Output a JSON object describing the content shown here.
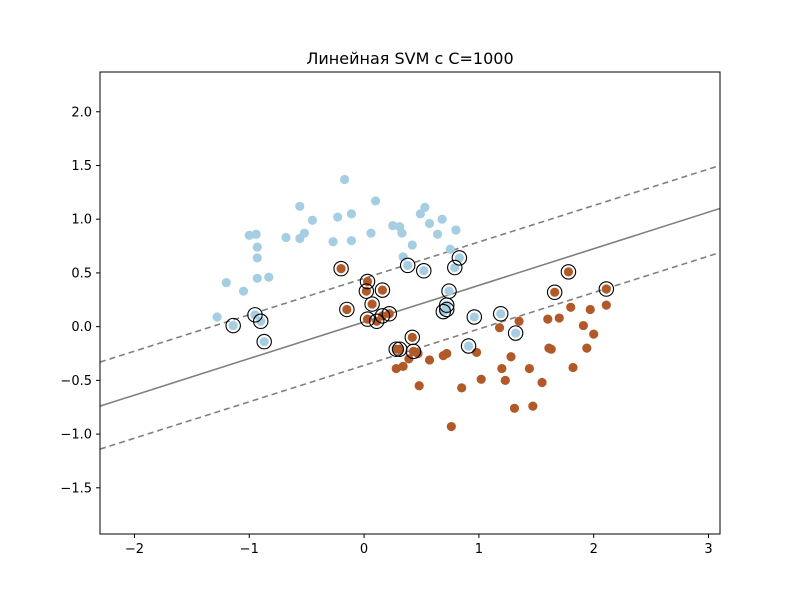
{
  "chart_data": {
    "type": "scatter",
    "title": "Линейная SVM с C=1000",
    "xlabel": "",
    "ylabel": "",
    "xlim": [
      -2.3,
      3.1
    ],
    "ylim": [
      -1.93,
      2.37
    ],
    "xticks": [
      -2,
      -1,
      0,
      1,
      2,
      3
    ],
    "xtick_labels": [
      "−2",
      "−1",
      "0",
      "1",
      "2",
      "3"
    ],
    "yticks": [
      -1.5,
      -1.0,
      -0.5,
      0.0,
      0.5,
      1.0,
      1.5,
      2.0
    ],
    "ytick_labels": [
      "−1.5",
      "−1.0",
      "−0.5",
      "0.0",
      "0.5",
      "1.0",
      "1.5",
      "2.0"
    ],
    "grid": false,
    "colors": {
      "class_0": "#a6cee3",
      "class_1": "#b15928",
      "decision_line": "#808080",
      "support_ring": "#000000"
    },
    "decision_function": {
      "line_x": [
        -2.3,
        3.1
      ],
      "boundary_y": [
        -0.74,
        1.1
      ],
      "upper_margin_y": [
        -0.33,
        1.5
      ],
      "lower_margin_y": [
        -1.14,
        0.69
      ],
      "boundary_style": "solid",
      "margin_style": "dashed"
    },
    "series": [
      {
        "class": 0,
        "color": "#a6cee3",
        "points": [
          [
            -1.28,
            0.09
          ],
          [
            -1.2,
            0.41
          ],
          [
            -1.05,
            0.33
          ],
          [
            -1.0,
            0.85
          ],
          [
            -0.94,
            0.86
          ],
          [
            -0.93,
            0.74
          ],
          [
            -0.93,
            0.64
          ],
          [
            -0.93,
            0.45
          ],
          [
            -0.83,
            0.46
          ],
          [
            -0.68,
            0.83
          ],
          [
            -0.56,
            1.12
          ],
          [
            -0.56,
            0.82
          ],
          [
            -0.52,
            0.87
          ],
          [
            -0.45,
            0.99
          ],
          [
            -0.27,
            0.79
          ],
          [
            -0.23,
            1.02
          ],
          [
            -0.17,
            1.37
          ],
          [
            -0.11,
            0.8
          ],
          [
            -0.11,
            1.05
          ],
          [
            0.06,
            0.87
          ],
          [
            0.1,
            1.17
          ],
          [
            0.25,
            0.94
          ],
          [
            0.31,
            0.93
          ],
          [
            0.33,
            0.87
          ],
          [
            0.34,
            0.65
          ],
          [
            0.42,
            0.76
          ],
          [
            0.49,
            1.05
          ],
          [
            0.53,
            1.11
          ],
          [
            0.57,
            0.96
          ],
          [
            0.64,
            0.86
          ],
          [
            0.68,
            1.0
          ],
          [
            0.75,
            0.72
          ],
          [
            0.8,
            0.9
          ],
          [
            -1.14,
            0.01
          ],
          [
            -0.95,
            0.11
          ],
          [
            -0.9,
            0.05
          ],
          [
            -0.87,
            -0.14
          ],
          [
            0.38,
            0.57
          ],
          [
            0.52,
            0.52
          ],
          [
            0.69,
            0.14
          ],
          [
            0.72,
            0.2
          ],
          [
            0.72,
            0.16
          ],
          [
            0.74,
            0.33
          ],
          [
            0.79,
            0.55
          ],
          [
            0.83,
            0.64
          ],
          [
            0.91,
            -0.18
          ],
          [
            0.96,
            0.09
          ],
          [
            1.19,
            0.12
          ],
          [
            1.32,
            -0.06
          ]
        ]
      },
      {
        "class": 1,
        "color": "#b15928",
        "points": [
          [
            0.28,
            -0.39
          ],
          [
            0.34,
            -0.37
          ],
          [
            0.39,
            -0.3
          ],
          [
            0.47,
            -0.25
          ],
          [
            0.48,
            -0.55
          ],
          [
            0.57,
            -0.31
          ],
          [
            0.69,
            -0.27
          ],
          [
            0.72,
            -0.25
          ],
          [
            0.76,
            -0.93
          ],
          [
            0.85,
            -0.57
          ],
          [
            0.98,
            -0.24
          ],
          [
            1.02,
            -0.49
          ],
          [
            1.18,
            -0.01
          ],
          [
            1.2,
            -0.39
          ],
          [
            1.23,
            -0.5
          ],
          [
            1.28,
            -0.28
          ],
          [
            1.31,
            -0.76
          ],
          [
            1.35,
            0.05
          ],
          [
            1.44,
            -0.39
          ],
          [
            1.47,
            -0.74
          ],
          [
            1.55,
            -0.52
          ],
          [
            1.6,
            0.07
          ],
          [
            1.61,
            -0.2
          ],
          [
            1.63,
            -0.21
          ],
          [
            1.7,
            0.08
          ],
          [
            1.8,
            0.18
          ],
          [
            1.82,
            -0.38
          ],
          [
            1.91,
            0.01
          ],
          [
            1.94,
            -0.2
          ],
          [
            1.97,
            0.16
          ],
          [
            2.0,
            -0.07
          ],
          [
            2.11,
            0.2
          ],
          [
            -0.2,
            0.54
          ],
          [
            -0.15,
            0.16
          ],
          [
            0.02,
            0.33
          ],
          [
            0.03,
            0.07
          ],
          [
            0.03,
            0.42
          ],
          [
            0.07,
            0.21
          ],
          [
            0.11,
            0.05
          ],
          [
            0.16,
            0.34
          ],
          [
            0.16,
            0.1
          ],
          [
            0.22,
            0.12
          ],
          [
            0.28,
            -0.21
          ],
          [
            0.31,
            -0.21
          ],
          [
            0.42,
            -0.1
          ],
          [
            0.43,
            -0.23
          ],
          [
            1.66,
            0.32
          ],
          [
            1.78,
            0.51
          ],
          [
            2.11,
            0.35
          ]
        ]
      }
    ],
    "support_vectors": [
      [
        -1.14,
        0.01
      ],
      [
        -0.95,
        0.11
      ],
      [
        -0.9,
        0.05
      ],
      [
        -0.87,
        -0.14
      ],
      [
        0.38,
        0.57
      ],
      [
        0.52,
        0.52
      ],
      [
        0.69,
        0.14
      ],
      [
        0.72,
        0.2
      ],
      [
        0.72,
        0.16
      ],
      [
        0.74,
        0.33
      ],
      [
        0.79,
        0.55
      ],
      [
        0.83,
        0.64
      ],
      [
        0.91,
        -0.18
      ],
      [
        0.96,
        0.09
      ],
      [
        1.19,
        0.12
      ],
      [
        1.32,
        -0.06
      ],
      [
        -0.2,
        0.54
      ],
      [
        -0.15,
        0.16
      ],
      [
        0.02,
        0.33
      ],
      [
        0.03,
        0.07
      ],
      [
        0.03,
        0.42
      ],
      [
        0.07,
        0.21
      ],
      [
        0.11,
        0.05
      ],
      [
        0.16,
        0.34
      ],
      [
        0.16,
        0.1
      ],
      [
        0.22,
        0.12
      ],
      [
        0.28,
        -0.21
      ],
      [
        0.31,
        -0.21
      ],
      [
        0.42,
        -0.1
      ],
      [
        0.43,
        -0.23
      ],
      [
        1.66,
        0.32
      ],
      [
        1.78,
        0.51
      ],
      [
        2.11,
        0.35
      ]
    ]
  }
}
